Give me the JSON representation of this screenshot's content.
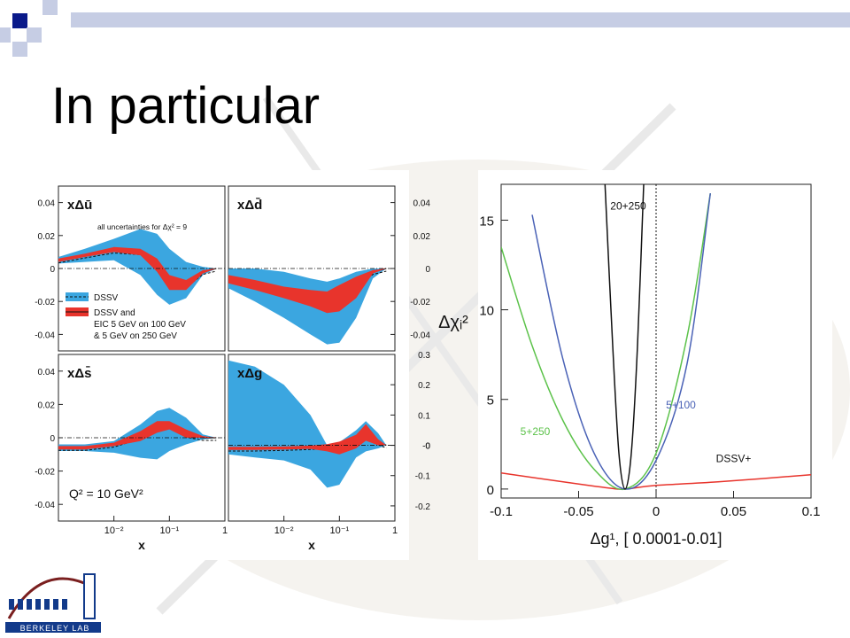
{
  "slide": {
    "title": "In particular",
    "logo_text": "BERKELEY LAB"
  },
  "colors": {
    "dssv_band": "#3ba6e0",
    "eic_band": "#e8342c",
    "chi_red": "#e8342c",
    "chi_green": "#5cc24a",
    "chi_blue": "#4a62b6",
    "chi_black": "#111111",
    "deco_square_dark": "#0a1a8a",
    "deco_square_light": "#c6cde4"
  },
  "chart_data": [
    {
      "type": "area",
      "panels": [
        {
          "label": "xΔū",
          "y_ticks": [
            "0.04",
            "0.02",
            "0",
            "-0.02",
            "-0.04"
          ],
          "ylim": [
            -0.05,
            0.05
          ]
        },
        {
          "label": "xΔd̄",
          "y_ticks": [
            "0.04",
            "0.02",
            "0",
            "-0.02",
            "-0.04"
          ],
          "ylim": [
            -0.05,
            0.05
          ]
        },
        {
          "label": "xΔs̄",
          "y_ticks": [
            "0.04",
            "0.02",
            "0",
            "-0.02",
            "-0.04"
          ],
          "ylim": [
            -0.05,
            0.05
          ]
        },
        {
          "label": "xΔg",
          "y_ticks": [
            "0.3",
            "0.2",
            "0.1",
            "0",
            "-0",
            "-0.1",
            "-0.2"
          ],
          "ylim": [
            -0.25,
            0.3
          ]
        }
      ],
      "x_ticks": [
        "10⁻²",
        "10⁻¹",
        "1"
      ],
      "xlabel": "x",
      "x_scale": "log",
      "annotation": "all uncertainties for Δχ² = 9",
      "legend": [
        "DSSV",
        "DSSV and",
        "EIC 5 GeV on 100 GeV",
        "& 5 GeV on 250 GeV"
      ],
      "q2_label": "Q² = 10 GeV²",
      "series": [
        {
          "name": "DSSV",
          "panel": 0,
          "x": [
            0.001,
            0.003,
            0.01,
            0.03,
            0.06,
            0.1,
            0.2,
            0.4,
            0.7
          ],
          "central": [
            0.005,
            0.008,
            0.011,
            0.01,
            0.002,
            -0.008,
            -0.01,
            -0.002,
            0
          ],
          "upper": [
            0.007,
            0.012,
            0.018,
            0.024,
            0.021,
            0.012,
            0.004,
            0.001,
            0
          ],
          "lower": [
            0.003,
            0.004,
            0.005,
            -0.004,
            -0.016,
            -0.022,
            -0.018,
            -0.004,
            0
          ]
        },
        {
          "name": "DSSV and EIC",
          "panel": 0,
          "x": [
            0.001,
            0.003,
            0.01,
            0.03,
            0.06,
            0.1,
            0.2,
            0.4,
            0.7
          ],
          "upper": [
            0.006,
            0.009,
            0.013,
            0.012,
            0.006,
            -0.004,
            -0.007,
            -0.001,
            0
          ],
          "lower": [
            0.004,
            0.007,
            0.01,
            0.008,
            -0.002,
            -0.013,
            -0.013,
            -0.003,
            0
          ]
        },
        {
          "name": "DSSV",
          "panel": 1,
          "x": [
            0.001,
            0.003,
            0.01,
            0.03,
            0.06,
            0.1,
            0.2,
            0.4,
            0.7
          ],
          "central": [
            -0.006,
            -0.01,
            -0.014,
            -0.018,
            -0.02,
            -0.018,
            -0.01,
            -0.002,
            0
          ],
          "upper": [
            -0.0,
            0.0,
            -0.002,
            -0.006,
            -0.008,
            -0.006,
            -0.002,
            0,
            0
          ],
          "lower": [
            -0.012,
            -0.02,
            -0.03,
            -0.04,
            -0.046,
            -0.045,
            -0.03,
            -0.006,
            0
          ]
        },
        {
          "name": "DSSV and EIC",
          "panel": 1,
          "x": [
            0.001,
            0.003,
            0.01,
            0.03,
            0.06,
            0.1,
            0.2,
            0.4,
            0.7
          ],
          "upper": [
            -0.004,
            -0.007,
            -0.011,
            -0.013,
            -0.014,
            -0.01,
            -0.005,
            -0.001,
            0
          ],
          "lower": [
            -0.009,
            -0.013,
            -0.018,
            -0.023,
            -0.027,
            -0.026,
            -0.018,
            -0.003,
            0
          ]
        },
        {
          "name": "DSSV",
          "panel": 2,
          "x": [
            0.001,
            0.003,
            0.01,
            0.03,
            0.06,
            0.1,
            0.2,
            0.4,
            0.7
          ],
          "central": [
            -0.006,
            -0.006,
            -0.004,
            0.001,
            0.007,
            0.008,
            0.002,
            0,
            0
          ],
          "upper": [
            -0.004,
            -0.004,
            -0.002,
            0.008,
            0.016,
            0.018,
            0.012,
            0.002,
            0
          ],
          "lower": [
            -0.008,
            -0.008,
            -0.009,
            -0.012,
            -0.013,
            -0.008,
            -0.004,
            -0.001,
            0
          ]
        },
        {
          "name": "DSSV and EIC",
          "panel": 2,
          "x": [
            0.001,
            0.003,
            0.01,
            0.03,
            0.06,
            0.1,
            0.2,
            0.4,
            0.7
          ],
          "upper": [
            -0.005,
            -0.005,
            -0.003,
            0.004,
            0.01,
            0.01,
            0.005,
            0.001,
            0
          ],
          "lower": [
            -0.007,
            -0.007,
            -0.005,
            -0.002,
            0.003,
            0.005,
            0,
            0,
            0
          ]
        },
        {
          "name": "DSSV",
          "panel": 3,
          "x": [
            0.001,
            0.003,
            0.01,
            0.03,
            0.06,
            0.1,
            0.2,
            0.3,
            0.5,
            0.7
          ],
          "central": [
            -0.01,
            -0.01,
            -0.008,
            -0.005,
            -0.002,
            0.005,
            0.02,
            0.04,
            0.01,
            0
          ],
          "upper": [
            0.28,
            0.26,
            0.2,
            0.1,
            0.0,
            0.01,
            0.05,
            0.08,
            0.04,
            0
          ],
          "lower": [
            -0.03,
            -0.04,
            -0.05,
            -0.08,
            -0.14,
            -0.13,
            -0.04,
            -0.02,
            -0.01,
            0
          ]
        },
        {
          "name": "DSSV and EIC",
          "panel": 3,
          "x": [
            0.001,
            0.003,
            0.01,
            0.03,
            0.06,
            0.1,
            0.2,
            0.3,
            0.5,
            0.7
          ],
          "upper": [
            -0.005,
            -0.005,
            -0.004,
            -0.001,
            0.004,
            0.012,
            0.035,
            0.07,
            0.02,
            0
          ],
          "lower": [
            -0.015,
            -0.015,
            -0.014,
            -0.012,
            -0.02,
            -0.03,
            -0.01,
            0.015,
            0,
            0
          ]
        }
      ]
    },
    {
      "type": "line",
      "xlabel": "Δg¹, [ 0.0001-0.01]",
      "ylabel": "Δχᵢ²",
      "xlim": [
        -0.1,
        0.1
      ],
      "ylim": [
        -0.5,
        17
      ],
      "x_ticks": [
        "-0.1",
        "-0.05",
        "0",
        "0.05",
        "0.1"
      ],
      "y_ticks": [
        "0",
        "5",
        "10",
        "15"
      ],
      "series": [
        {
          "name": "DSSV+",
          "color_key": "chi_red",
          "x": [
            -0.1,
            -0.06,
            -0.03,
            -0.02,
            0.0,
            0.04,
            0.1
          ],
          "y": [
            0.9,
            0.4,
            0.05,
            0.0,
            0.2,
            0.4,
            0.8
          ]
        },
        {
          "name": "5+250",
          "color_key": "chi_green",
          "x": [
            -0.1,
            -0.08,
            -0.06,
            -0.04,
            -0.02,
            0.0,
            0.02,
            0.035
          ],
          "y": [
            13.5,
            8.0,
            3.8,
            1.1,
            0.0,
            2.0,
            8.5,
            16.5
          ]
        },
        {
          "name": "5+100",
          "color_key": "chi_blue",
          "x": [
            -0.08,
            -0.06,
            -0.04,
            -0.02,
            0.0,
            0.02,
            0.035
          ],
          "y": [
            15.3,
            7.2,
            2.0,
            0.0,
            1.6,
            7.0,
            16.5
          ]
        },
        {
          "name": "20+250",
          "color_key": "chi_black",
          "x": [
            -0.033,
            -0.028,
            -0.024,
            -0.02,
            -0.016,
            -0.012,
            -0.008
          ],
          "y": [
            17,
            8.0,
            2.0,
            0.0,
            2.0,
            8.0,
            17
          ]
        }
      ]
    }
  ]
}
